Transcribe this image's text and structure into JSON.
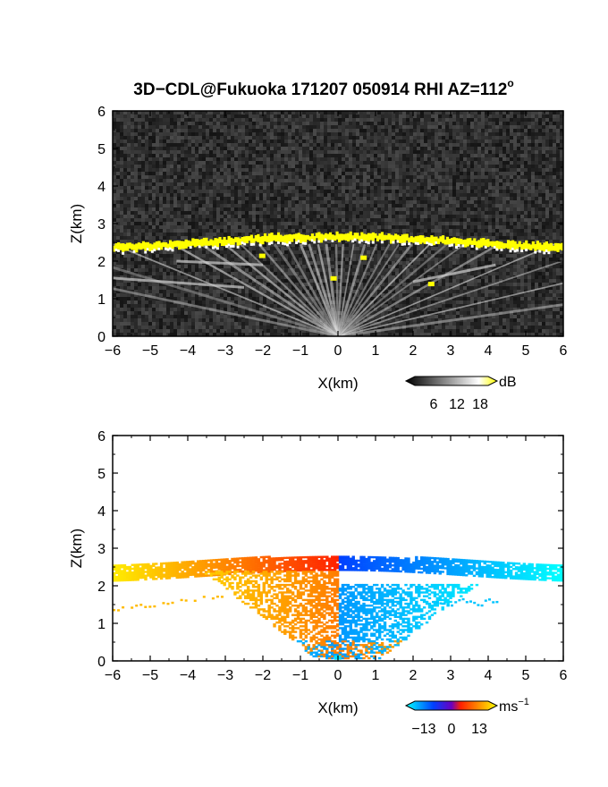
{
  "chart_data": [
    {
      "type": "heatmap",
      "title": "3D−CDL@Fukuoka 171207 050914 RHI AZ=112",
      "title_superscript": "o",
      "xlabel": "X(km)",
      "ylabel": "Z(km)",
      "xlim": [
        -6,
        6
      ],
      "ylim": [
        0,
        6
      ],
      "x_ticks": [
        "−6",
        "−5",
        "−4",
        "−3",
        "−2",
        "−1",
        "0",
        "1",
        "2",
        "3",
        "4",
        "5",
        "6"
      ],
      "y_ticks": [
        "0",
        "1",
        "2",
        "3",
        "4",
        "5",
        "6"
      ],
      "grid": false,
      "background": "noisy dark gray",
      "colorbar": {
        "unit": "dB",
        "ticks": [
          "6",
          "12",
          "18"
        ],
        "colors": [
          "#000000",
          "#ffffff",
          "#ffff00"
        ]
      },
      "features": {
        "cloud_layer_height_km": 2.5,
        "highlight_color": "#ffff00"
      }
    },
    {
      "type": "heatmap",
      "xlabel": "X(km)",
      "ylabel": "Z(km)",
      "xlim": [
        -6,
        6
      ],
      "ylim": [
        0,
        6
      ],
      "x_ticks": [
        "−6",
        "−5",
        "−4",
        "−3",
        "−2",
        "−1",
        "0",
        "1",
        "2",
        "3",
        "4",
        "5",
        "6"
      ],
      "y_ticks": [
        "0",
        "1",
        "2",
        "3",
        "4",
        "5",
        "6"
      ],
      "grid": false,
      "colorbar": {
        "unit": "ms",
        "unit_superscript": "−1",
        "ticks": [
          "−13",
          "0",
          "13"
        ],
        "colors": [
          "#00ffff",
          "#0040ff",
          "#ff2000",
          "#ffff00"
        ]
      },
      "features": {
        "cloud_top_km": 2.8
      }
    }
  ]
}
